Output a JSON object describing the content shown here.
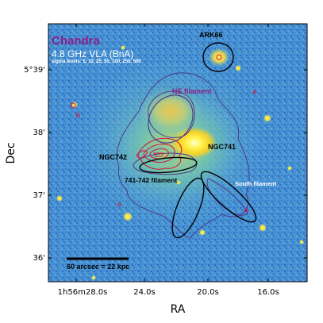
{
  "figure": {
    "title_main": "Chandra",
    "title_sub": "4.8 GHz VLA (BnA)",
    "sigma_note": "sigma levels: 5, 10, 25, 50, 100, 250, 500",
    "labels": {
      "ark66": "ARK66",
      "ne_filament": "NE filament",
      "ngc741": "NGC741",
      "ngc742": "NGC742",
      "bridge": "741-742 filament",
      "south_filament": "South filament"
    },
    "scalebar": "60 arcsec = 22 kpc",
    "x_axis": {
      "label": "RA",
      "ticks": [
        "1h56m28.0s",
        "24.0s",
        "20.0s",
        "16.0s"
      ]
    },
    "y_axis": {
      "label": "Dec",
      "ticks": [
        "5°39'",
        "38'",
        "37'",
        "36'"
      ]
    },
    "colors": {
      "title_main": "#8a1f8a",
      "title_sub": "#ffffff",
      "ne_label": "#8a1f8a",
      "radio_contour": "#d4143a",
      "xray_contour": "#4a3a8c",
      "ellipse": "#000000"
    }
  }
}
